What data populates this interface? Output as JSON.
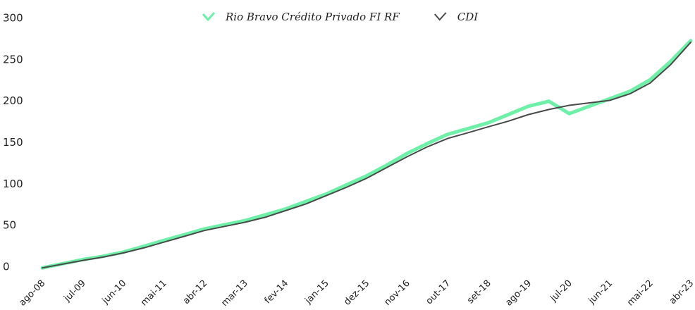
{
  "chart_data": {
    "type": "line",
    "categories": [
      "ago-08",
      null,
      "jul-09",
      null,
      "jun-10",
      null,
      "mai-11",
      null,
      "abr-12",
      null,
      "mar-13",
      null,
      "fev-14",
      null,
      "jan-15",
      null,
      "dez-15",
      null,
      "nov-16",
      null,
      "out-17",
      null,
      "set-18",
      null,
      "ago-19",
      null,
      "jul-20",
      null,
      "jun-21",
      null,
      "mai-22",
      null,
      "abr-23"
    ],
    "series": [
      {
        "name": "Rio Bravo Crédito Privado FI RF",
        "color": "#6ef0a8",
        "values": [
          -1,
          4,
          9,
          13,
          18,
          25,
          32,
          39,
          46,
          51,
          56,
          63,
          70,
          79,
          88,
          99,
          110,
          123,
          137,
          149,
          160,
          167,
          174,
          184,
          194,
          200,
          185,
          194,
          203,
          212,
          226,
          248,
          273
        ]
      },
      {
        "name": "CDI",
        "color": "#4a4a4a",
        "values": [
          -1,
          3.5,
          8,
          12,
          17,
          23,
          30,
          37,
          44,
          49,
          54,
          60,
          68,
          76,
          86,
          96,
          107,
          120,
          133,
          145,
          155,
          162,
          169,
          176,
          184,
          190,
          195,
          198,
          201,
          209,
          222,
          244,
          271
        ]
      }
    ],
    "ylim": [
      0,
      300
    ],
    "yticks": [
      0,
      50,
      100,
      150,
      200,
      250,
      300
    ],
    "grid": false
  }
}
